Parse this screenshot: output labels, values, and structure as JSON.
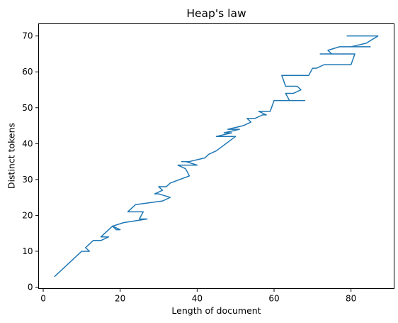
{
  "chart_data": {
    "type": "line",
    "title": "Heap's law",
    "xlabel": "Length of document",
    "ylabel": "Distinct tokens",
    "xlim": [
      -1.2,
      91.2
    ],
    "ylim": [
      -0.4,
      73.4
    ],
    "xticks": [
      0,
      20,
      40,
      60,
      80
    ],
    "yticks": [
      0,
      10,
      20,
      30,
      40,
      50,
      60,
      70
    ],
    "grid": false,
    "color": "#1f77b4",
    "series": [
      {
        "x": [
          3,
          10,
          12,
          11,
          13,
          15,
          17,
          16,
          15,
          18,
          20,
          19,
          18,
          21,
          27,
          25,
          26,
          22,
          24,
          31,
          33,
          30,
          29,
          31,
          30,
          32,
          33,
          38,
          37,
          35,
          39,
          40,
          37,
          36,
          38,
          42,
          43,
          45,
          50,
          49,
          48,
          47,
          46,
          45,
          49,
          47,
          51,
          50,
          48,
          52,
          54,
          53,
          55,
          57,
          58,
          56,
          59,
          60,
          68,
          64,
          63,
          65,
          67,
          66,
          63,
          62,
          69,
          70,
          71,
          73,
          76,
          80,
          81,
          72,
          75,
          74,
          77,
          85,
          79,
          80,
          84,
          87,
          79
        ],
        "y": [
          3,
          10,
          10,
          11,
          13,
          13,
          14,
          14,
          14,
          17,
          16,
          16,
          17,
          18,
          19,
          19,
          21,
          21,
          23,
          24,
          25,
          26,
          26,
          27,
          28,
          28,
          29,
          31,
          33,
          34,
          34,
          34,
          35,
          35,
          35,
          36,
          37,
          38,
          42,
          42,
          42,
          42,
          42,
          42,
          43,
          43,
          44,
          44,
          44,
          45,
          46,
          47,
          47,
          48,
          48,
          49,
          49,
          52,
          52,
          52,
          54,
          54,
          55,
          56,
          56,
          59,
          59,
          61,
          61,
          62,
          62,
          62,
          65,
          65,
          65,
          66,
          67,
          67,
          67,
          67,
          68,
          70,
          70
        ]
      }
    ]
  }
}
